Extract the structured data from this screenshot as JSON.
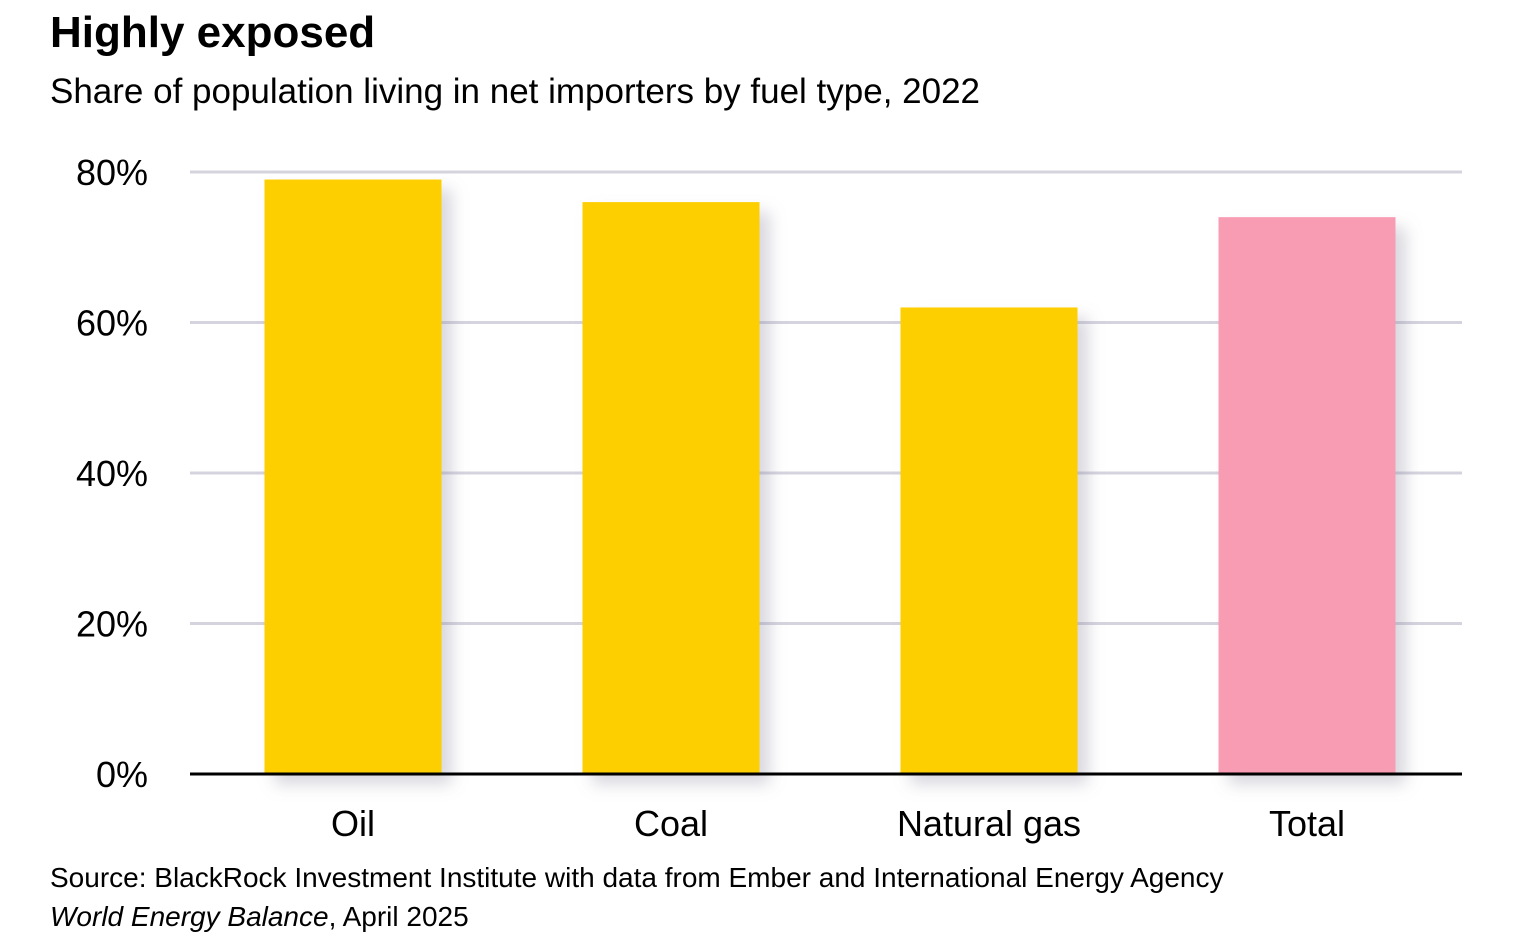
{
  "title": "Highly exposed",
  "subtitle": "Share of population living in net importers by fuel type, 2022",
  "source_line1": "Source: BlackRock Investment Institute with data from Ember and International Energy Agency",
  "source_line2_italic": "World Energy Balance",
  "source_line2_rest": ", April 2025",
  "chart_data": {
    "type": "bar",
    "title": "Highly exposed",
    "subtitle": "Share of population living in net importers by fuel type, 2022",
    "categories": [
      "Oil",
      "Coal",
      "Natural gas",
      "Total"
    ],
    "values": [
      79,
      76,
      62,
      74
    ],
    "colors": [
      "#FDCF00",
      "#FDCF00",
      "#FDCF00",
      "#F89CB4"
    ],
    "ylim": [
      0,
      80
    ],
    "yticks": [
      0,
      20,
      40,
      60,
      80
    ],
    "ytick_labels": [
      "0%",
      "20%",
      "40%",
      "60%",
      "80%"
    ],
    "xlabel": "",
    "ylabel": "",
    "grid": true
  }
}
